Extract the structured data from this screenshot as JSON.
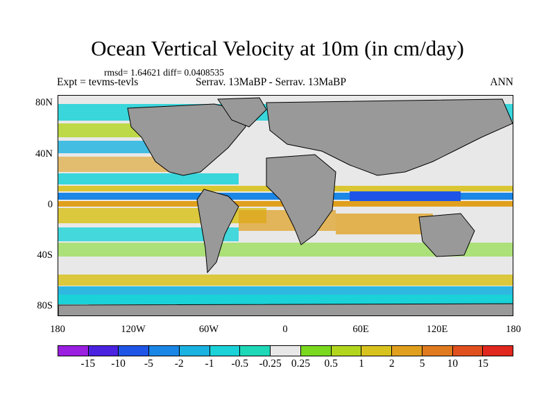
{
  "title": "Ocean Vertical Velocity at 10m (in cm/day)",
  "stats": "rmsd= 1.64621 diff= 0.0408535",
  "left_label": "Expt = tevms-tevls",
  "center_label": "Serrav.   13MaBP - Serrav.   13MaBP",
  "right_label": "ANN",
  "lat_ticks": [
    "80N",
    "40N",
    "0",
    "40S",
    "80S"
  ],
  "lon_ticks": [
    "180",
    "120W",
    "60W",
    "0",
    "60E",
    "120E",
    "180"
  ],
  "colorbar": {
    "labels": [
      "-15",
      "-10",
      "-5",
      "-2",
      "-1",
      "-0.5",
      "-0.25",
      "0.25",
      "0.5",
      "1",
      "2",
      "5",
      "10",
      "15"
    ],
    "colors": [
      "#9a1fe0",
      "#4b22e0",
      "#1e55e6",
      "#1a86e6",
      "#1ab2e0",
      "#1ad2d8",
      "#1ed8b8",
      "#e8e8e8",
      "#7ad81e",
      "#b2d51e",
      "#d8c21e",
      "#e0a01e",
      "#e07a1e",
      "#e0501e",
      "#e0281e"
    ]
  },
  "map": {
    "land_color": "#999999",
    "ocean_background": "#e8e8e8"
  }
}
